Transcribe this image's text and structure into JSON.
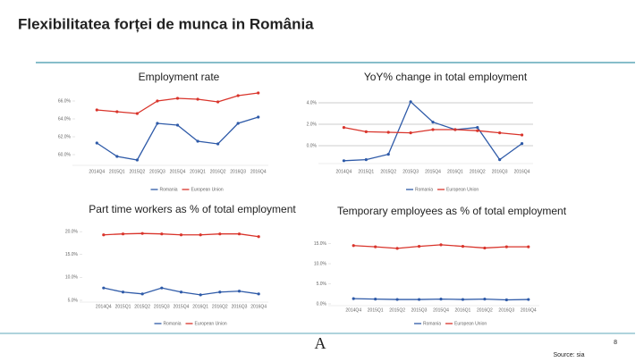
{
  "title": "Flexibilitatea forței de munca in România",
  "source": "Source: sia",
  "page_number": "8",
  "logo": "A",
  "chart_data": [
    {
      "type": "line",
      "title": "Employment rate",
      "categories": [
        "2014Q4",
        "2015Q1",
        "2015Q2",
        "2015Q3",
        "2015Q4",
        "2016Q1",
        "2016Q2",
        "2016Q3",
        "2016Q4"
      ],
      "series": [
        {
          "name": "Romania",
          "color": "#2e5aa8",
          "values": [
            61.3,
            59.8,
            59.4,
            63.5,
            63.3,
            61.5,
            61.2,
            63.5,
            64.2
          ]
        },
        {
          "name": "European Union",
          "color": "#d9342b",
          "values": [
            65.0,
            64.8,
            64.6,
            66.0,
            66.3,
            66.2,
            65.9,
            66.6,
            66.9
          ]
        }
      ],
      "ylim": [
        59,
        67
      ],
      "yticks": [
        {
          "value": 60,
          "label": "60.0%"
        },
        {
          "value": 62,
          "label": "62.0%"
        },
        {
          "value": 64,
          "label": "64.0%"
        },
        {
          "value": 66,
          "label": "66.0%"
        }
      ],
      "grid": false
    },
    {
      "type": "line",
      "title": "YoY% change in total employment",
      "categories": [
        "2014Q4",
        "2015Q1",
        "2015Q2",
        "2015Q3",
        "2015Q4",
        "2016Q1",
        "2016Q2",
        "2016Q3",
        "2016Q4"
      ],
      "series": [
        {
          "name": "Romania",
          "color": "#2e5aa8",
          "values": [
            -1.4,
            -1.3,
            -0.8,
            4.1,
            2.2,
            1.5,
            1.7,
            -1.3,
            0.2
          ]
        },
        {
          "name": "European Union",
          "color": "#d9342b",
          "values": [
            1.7,
            1.3,
            1.25,
            1.2,
            1.5,
            1.5,
            1.4,
            1.2,
            1.0
          ]
        }
      ],
      "ylim": [
        -1.5,
        4.5
      ],
      "yticks": [
        {
          "value": 0,
          "label": "0.0%"
        },
        {
          "value": 2,
          "label": "2.0%"
        },
        {
          "value": 4,
          "label": "4.0%"
        }
      ],
      "grid": true
    },
    {
      "type": "line",
      "title": "Part time workers as % of total employment",
      "categories": [
        "2014Q4",
        "2015Q1",
        "2015Q2",
        "2015Q3",
        "2015Q4",
        "2016Q1",
        "2016Q2",
        "2016Q3",
        "2016Q4"
      ],
      "series": [
        {
          "name": "Romania",
          "color": "#2e5aa8",
          "values": [
            7.7,
            6.8,
            6.4,
            7.7,
            6.8,
            6.2,
            6.8,
            7.0,
            6.4
          ]
        },
        {
          "name": "European Union",
          "color": "#d9342b",
          "values": [
            19.3,
            19.5,
            19.6,
            19.5,
            19.3,
            19.3,
            19.5,
            19.5,
            18.9
          ]
        }
      ],
      "ylim": [
        5,
        21
      ],
      "yticks": [
        {
          "value": 5,
          "label": "5.0%"
        },
        {
          "value": 10,
          "label": "10.0%"
        },
        {
          "value": 15,
          "label": "15.0%"
        },
        {
          "value": 20,
          "label": "20.0%"
        }
      ],
      "grid": false
    },
    {
      "type": "line",
      "title": "Temporary employees as % of total employment",
      "categories": [
        "2014Q4",
        "2015Q1",
        "2015Q2",
        "2015Q3",
        "2015Q4",
        "2016Q1",
        "2016Q2",
        "2016Q3",
        "2016Q4"
      ],
      "series": [
        {
          "name": "Romania",
          "color": "#2e5aa8",
          "values": [
            1.3,
            1.2,
            1.1,
            1.1,
            1.2,
            1.1,
            1.2,
            1.0,
            1.1
          ]
        },
        {
          "name": "European Union",
          "color": "#d9342b",
          "values": [
            14.5,
            14.2,
            13.8,
            14.3,
            14.7,
            14.3,
            13.9,
            14.2,
            14.2
          ]
        }
      ],
      "ylim": [
        0,
        16
      ],
      "yticks": [
        {
          "value": 0,
          "label": "0.0%"
        },
        {
          "value": 5,
          "label": "5.0%"
        },
        {
          "value": 10,
          "label": "10.0%"
        },
        {
          "value": 15,
          "label": "15.0%"
        }
      ],
      "grid": false
    }
  ]
}
